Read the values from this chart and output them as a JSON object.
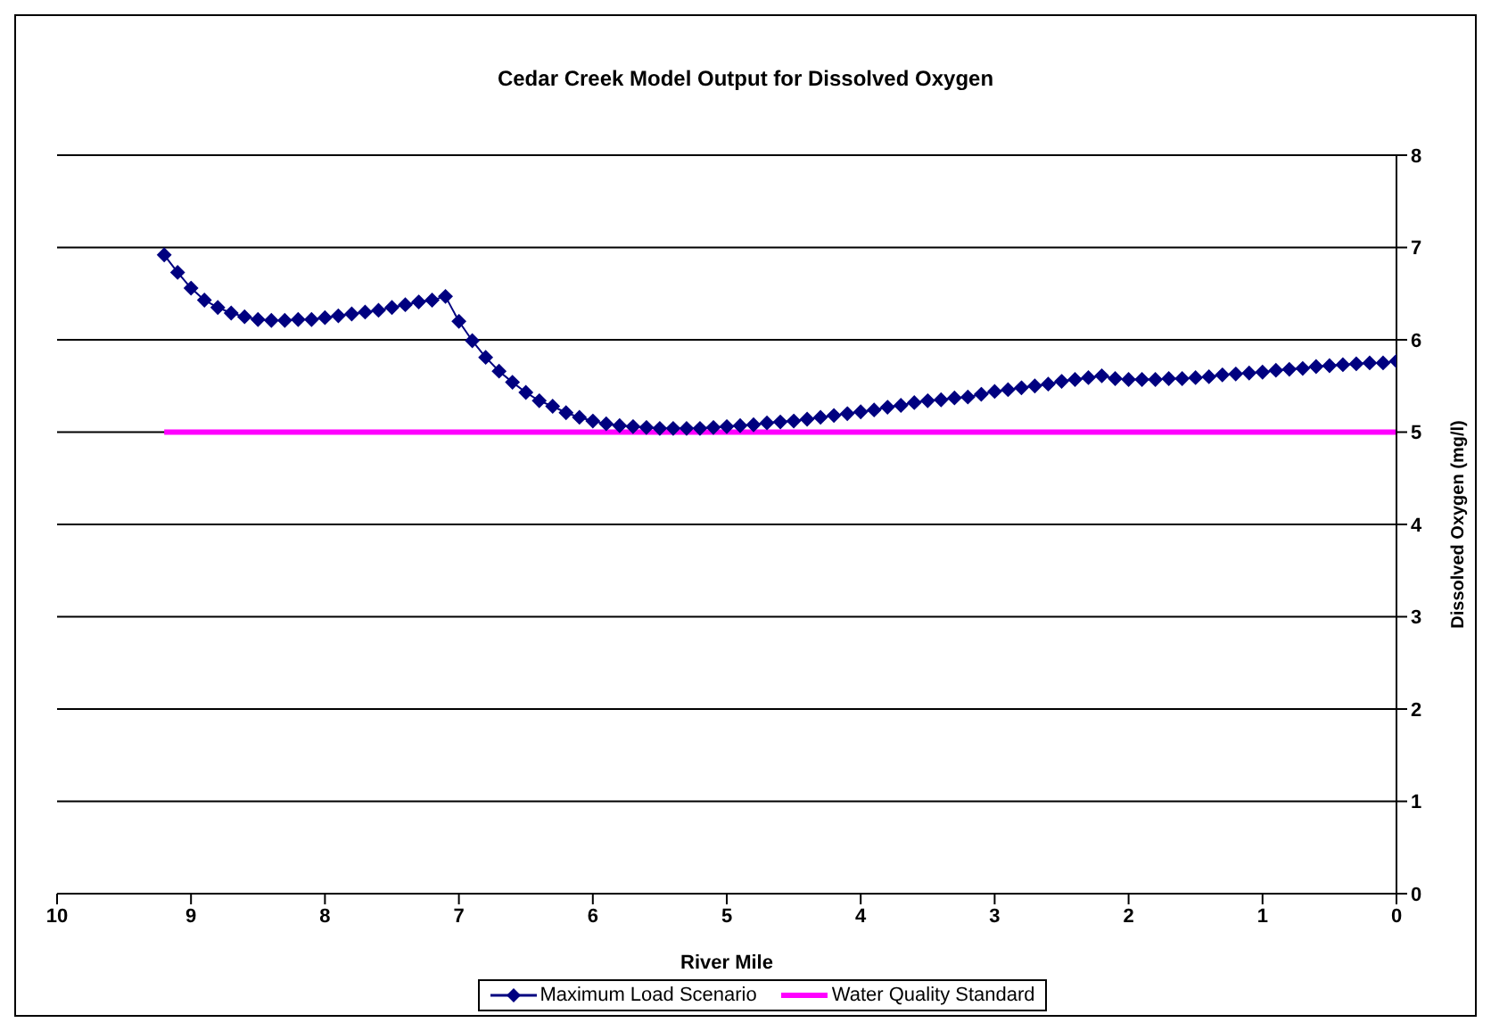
{
  "chart_data": {
    "type": "line",
    "title": "Cedar Creek Model Output for Dissolved Oxygen",
    "xlabel": "River Mile",
    "ylabel": "Dissolved Oxygen (mg/l)",
    "xlim": [
      10,
      0
    ],
    "xticks": [
      10,
      9,
      8,
      7,
      6,
      5,
      4,
      3,
      2,
      1,
      0
    ],
    "ylim": [
      0,
      8
    ],
    "yticks": [
      0,
      1,
      2,
      3,
      4,
      5,
      6,
      7,
      8
    ],
    "grid": "y",
    "legend": "bottom",
    "line_style": "solid",
    "series": [
      {
        "name": "Maximum Load Scenario",
        "color": "#000080",
        "marker": "diamond",
        "x": [
          9.2,
          9.1,
          9.0,
          8.9,
          8.8,
          8.7,
          8.6,
          8.5,
          8.4,
          8.3,
          8.2,
          8.1,
          8.0,
          7.9,
          7.8,
          7.7,
          7.6,
          7.5,
          7.4,
          7.3,
          7.2,
          7.1,
          7.0,
          6.9,
          6.8,
          6.7,
          6.6,
          6.5,
          6.4,
          6.3,
          6.2,
          6.1,
          6.0,
          5.9,
          5.8,
          5.7,
          5.6,
          5.5,
          5.4,
          5.3,
          5.2,
          5.1,
          5.0,
          4.9,
          4.8,
          4.7,
          4.6,
          4.5,
          4.4,
          4.3,
          4.2,
          4.1,
          4.0,
          3.9,
          3.8,
          3.7,
          3.6,
          3.5,
          3.4,
          3.3,
          3.2,
          3.1,
          3.0,
          2.9,
          2.8,
          2.7,
          2.6,
          2.5,
          2.4,
          2.3,
          2.2,
          2.1,
          2.0,
          1.9,
          1.8,
          1.7,
          1.6,
          1.5,
          1.4,
          1.3,
          1.2,
          1.1,
          1.0,
          0.9,
          0.8,
          0.7,
          0.6,
          0.5,
          0.4,
          0.3,
          0.2,
          0.1,
          0.0
        ],
        "values": [
          6.92,
          6.73,
          6.56,
          6.43,
          6.35,
          6.29,
          6.25,
          6.22,
          6.21,
          6.21,
          6.22,
          6.22,
          6.24,
          6.26,
          6.28,
          6.3,
          6.32,
          6.35,
          6.38,
          6.41,
          6.43,
          6.47,
          6.2,
          5.99,
          5.81,
          5.66,
          5.54,
          5.43,
          5.34,
          5.28,
          5.21,
          5.16,
          5.12,
          5.09,
          5.07,
          5.06,
          5.05,
          5.04,
          5.04,
          5.04,
          5.04,
          5.05,
          5.06,
          5.07,
          5.08,
          5.1,
          5.11,
          5.12,
          5.14,
          5.16,
          5.18,
          5.2,
          5.22,
          5.24,
          5.27,
          5.29,
          5.32,
          5.34,
          5.35,
          5.37,
          5.38,
          5.41,
          5.44,
          5.46,
          5.48,
          5.5,
          5.52,
          5.55,
          5.57,
          5.59,
          5.61,
          5.58,
          5.57,
          5.57,
          5.57,
          5.58,
          5.58,
          5.59,
          5.6,
          5.62,
          5.63,
          5.64,
          5.65,
          5.67,
          5.68,
          5.69,
          5.71,
          5.72,
          5.73,
          5.74,
          5.75,
          5.75,
          5.77
        ]
      },
      {
        "name": "Water Quality Standard",
        "color": "#ff00ff",
        "marker": "none",
        "x": [
          9.2,
          0
        ],
        "values": [
          5,
          5
        ]
      }
    ]
  }
}
